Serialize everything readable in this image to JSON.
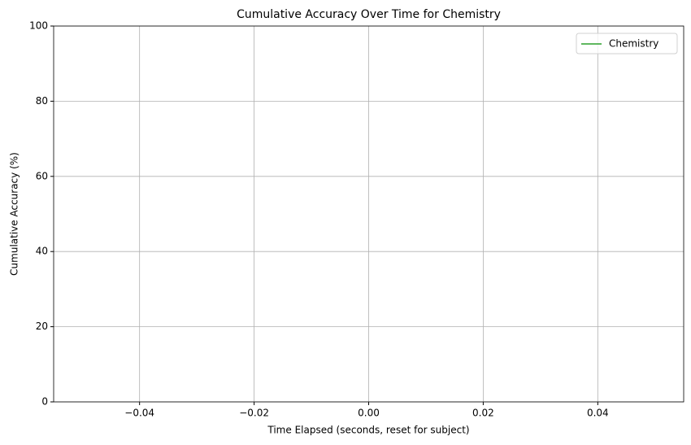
{
  "chart_data": {
    "type": "line",
    "title": "Cumulative Accuracy Over Time for Chemistry",
    "xlabel": "Time Elapsed (seconds, reset for subject)",
    "ylabel": "Cumulative Accuracy (%)",
    "x": [],
    "series": [
      {
        "name": "Chemistry",
        "color": "#2ca02c",
        "values": []
      }
    ],
    "xlim": [
      -0.055,
      0.055
    ],
    "xticks": [
      {
        "value": -0.04,
        "label": "−0.04"
      },
      {
        "value": -0.02,
        "label": "−0.02"
      },
      {
        "value": 0,
        "label": "0.00"
      },
      0.02,
      0.04
    ],
    "ylim": [
      0,
      100
    ],
    "yticks": [
      0,
      20,
      40,
      60,
      80,
      100
    ],
    "grid": true,
    "legend": "upper right"
  }
}
